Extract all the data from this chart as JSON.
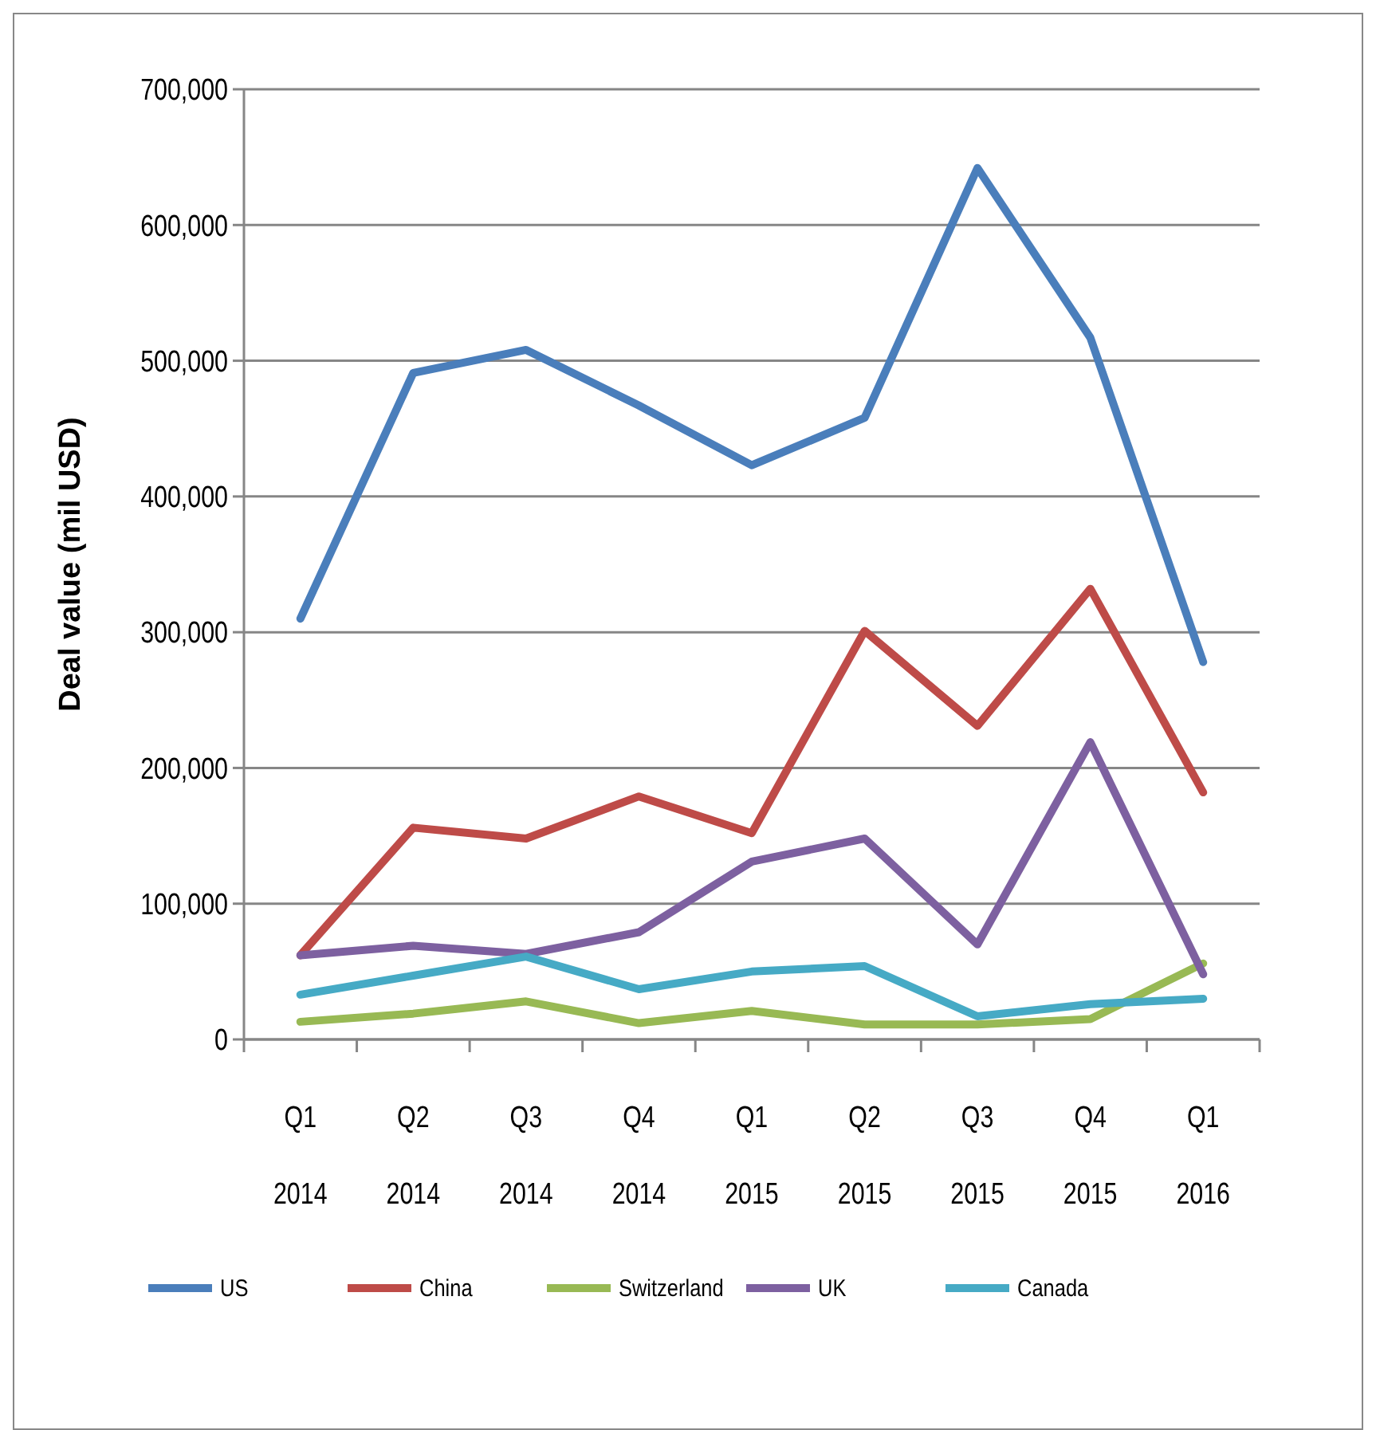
{
  "chart_data": {
    "type": "line",
    "ylabel": "Deal value (mil USD)",
    "categories": [
      "Q1 2014",
      "Q2 2014",
      "Q3 2014",
      "Q4 2014",
      "Q1 2015",
      "Q2 2015",
      "Q3 2015",
      "Q4 2015",
      "Q1 2016"
    ],
    "series": [
      {
        "name": "US",
        "color": "#4a7ebb",
        "values": [
          310000,
          491000,
          508000,
          467000,
          423000,
          458000,
          642000,
          517000,
          278000
        ]
      },
      {
        "name": "China",
        "color": "#be4b48",
        "values": [
          62000,
          156000,
          148000,
          179000,
          152000,
          301000,
          231000,
          332000,
          182000
        ]
      },
      {
        "name": "Switzerland",
        "color": "#98b954",
        "values": [
          13000,
          19000,
          28000,
          12000,
          21000,
          11000,
          11000,
          15000,
          56000
        ]
      },
      {
        "name": "UK",
        "color": "#7d60a0",
        "values": [
          62000,
          69000,
          63000,
          79000,
          131000,
          148000,
          70000,
          219000,
          48000
        ]
      },
      {
        "name": "Canada",
        "color": "#46aac5",
        "values": [
          33000,
          47000,
          61000,
          37000,
          50000,
          54000,
          17000,
          26000,
          30000
        ]
      }
    ],
    "ylim": [
      0,
      700000
    ],
    "yticks": [
      {
        "value": 0,
        "label": "0"
      },
      {
        "value": 100000,
        "label": "100,000"
      },
      {
        "value": 200000,
        "label": "200,000"
      },
      {
        "value": 300000,
        "label": "300,000"
      },
      {
        "value": 400000,
        "label": "400,000"
      },
      {
        "value": 500000,
        "label": "500,000"
      },
      {
        "value": 600000,
        "label": "600,000"
      },
      {
        "value": 700000,
        "label": "700,000"
      }
    ],
    "grid": "y",
    "legend": "bottom",
    "marker": "none",
    "line_style": "solid"
  }
}
